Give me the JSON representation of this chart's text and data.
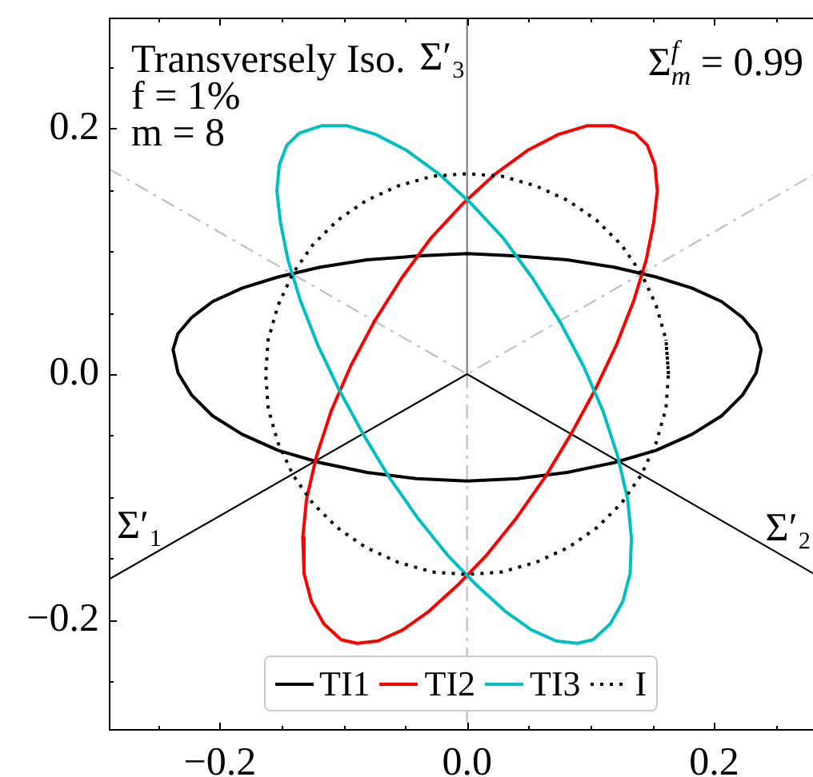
{
  "chart_data": {
    "type": "line",
    "annotations": [
      "Transversely Iso.",
      "f = 1%",
      "m = 8",
      "Σ$^{f}$$_{m}$ = 0.99",
      {
        "text": "Σ′₃",
        "x": 0,
        "y": 0.24
      },
      {
        "text": "Σ′₁",
        "x": -0.245,
        "y": -0.141
      },
      {
        "text": "Σ′₂",
        "x": 0.248,
        "y": -0.143
      }
    ],
    "xlim": [
      -0.29,
      0.28
    ],
    "ylim": [
      -0.29,
      0.29
    ],
    "xticks": [
      {
        "value": -0.25,
        "label": null
      },
      {
        "value": -0.2,
        "label": "−0.2"
      },
      {
        "value": -0.15,
        "label": null
      },
      {
        "value": -0.1,
        "label": null
      },
      {
        "value": -0.05,
        "label": null
      },
      {
        "value": 0,
        "label": "0.0"
      },
      {
        "value": 0.05,
        "label": null
      },
      {
        "value": 0.1,
        "label": null
      },
      {
        "value": 0.15,
        "label": null
      },
      0.2,
      {
        "value": 0.25,
        "label": null
      }
    ],
    "yticks": [
      {
        "value": -0.25,
        "label": null
      },
      {
        "value": -0.2,
        "label": "−0.2"
      },
      {
        "value": -0.15,
        "label": null
      },
      {
        "value": -0.1,
        "label": null
      },
      {
        "value": -0.05,
        "label": null
      },
      {
        "value": 0,
        "label": "0.0"
      },
      {
        "value": 0.05,
        "label": null
      },
      {
        "value": 0.1,
        "label": null
      },
      {
        "value": 0.15,
        "label": null
      },
      0.2,
      {
        "value": 0.25,
        "label": null
      }
    ],
    "legend": "bottom",
    "series": [
      {
        "color": "#808080",
        "line_style": "solid",
        "x": [
          0,
          0
        ],
        "values": [
          0,
          0.29
        ]
      },
      {
        "color": "#c0c0c0",
        "line_style": "dashed",
        "x": [
          0,
          0
        ],
        "values": [
          0,
          -0.29
        ]
      },
      {
        "color": "#c0c0c0",
        "line_style": "dashed",
        "x": [
          -0.29,
          0,
          0.28
        ],
        "values": [
          0.167,
          0,
          0.162
        ]
      },
      {
        "color": "#000000",
        "line_style": "solid",
        "x": [
          -0.29,
          0,
          0.28
        ],
        "values": [
          -0.167,
          0,
          -0.162
        ]
      },
      {
        "name": "TI1",
        "color": "#000000",
        "line_style": "solid",
        "x": [
          0.238,
          0.234,
          0.223,
          0.206,
          0.182,
          0.153,
          0.119,
          0.081,
          0.041,
          0,
          -0.041,
          -0.081,
          -0.119,
          -0.153,
          -0.182,
          -0.206,
          -0.223,
          -0.234,
          -0.238,
          -0.234,
          -0.223,
          -0.206,
          -0.182,
          -0.153,
          -0.119,
          -0.081,
          -0.041,
          0,
          0.041,
          0.081,
          0.119,
          0.153,
          0.182,
          0.206,
          0.223,
          0.234,
          0.238,
          0.234
        ],
        "values": [
          0.02,
          0.033,
          0.046,
          0.059,
          0.07,
          0.079,
          0.087,
          0.093,
          0.096,
          0.098,
          0.096,
          0.093,
          0.087,
          0.079,
          0.07,
          0.059,
          0.046,
          0.033,
          0.02,
          0.001,
          -0.017,
          -0.034,
          -0.049,
          -0.062,
          -0.072,
          -0.08,
          -0.085,
          -0.087,
          -0.085,
          -0.08,
          -0.072,
          -0.062,
          -0.049,
          -0.034,
          -0.017,
          0.001,
          0.02,
          0.033
        ]
      },
      {
        "name": "TI2",
        "color": "#ff0000",
        "line_style": "solid",
        "x": [
          -0.102,
          -0.089,
          -0.072,
          -0.052,
          -0.031,
          -0.008,
          0.016,
          0.04,
          0.063,
          0.084,
          0.104,
          0.121,
          0.135,
          0.145,
          0.151,
          0.154,
          0.152,
          0.146,
          0.136,
          0.118,
          0.097,
          0.074,
          0.049,
          0.023,
          -0.003,
          -0.029,
          -0.053,
          -0.075,
          -0.094,
          -0.11,
          -0.122,
          -0.13,
          -0.133,
          -0.132,
          -0.126,
          -0.116,
          -0.102,
          -0.089
        ],
        "values": [
          -0.216,
          -0.219,
          -0.217,
          -0.208,
          -0.193,
          -0.172,
          -0.147,
          -0.117,
          -0.084,
          -0.049,
          -0.012,
          0.024,
          0.06,
          0.093,
          0.123,
          0.149,
          0.17,
          0.186,
          0.196,
          0.202,
          0.202,
          0.195,
          0.182,
          0.163,
          0.139,
          0.111,
          0.078,
          0.043,
          0.007,
          -0.03,
          -0.067,
          -0.102,
          -0.133,
          -0.162,
          -0.185,
          -0.203,
          -0.216,
          -0.219
        ]
      },
      {
        "name": "TI3",
        "color": "#00bfbf",
        "line_style": "solid",
        "x": [
          0.102,
          0.089,
          0.072,
          0.052,
          0.031,
          0.008,
          -0.016,
          -0.04,
          -0.063,
          -0.084,
          -0.104,
          -0.121,
          -0.135,
          -0.145,
          -0.151,
          -0.154,
          -0.152,
          -0.146,
          -0.136,
          -0.118,
          -0.097,
          -0.074,
          -0.049,
          -0.023,
          0.003,
          0.029,
          0.053,
          0.075,
          0.094,
          0.11,
          0.122,
          0.13,
          0.133,
          0.132,
          0.126,
          0.116,
          0.102,
          0.089
        ],
        "values": [
          -0.216,
          -0.219,
          -0.217,
          -0.208,
          -0.193,
          -0.172,
          -0.147,
          -0.117,
          -0.084,
          -0.049,
          -0.012,
          0.024,
          0.06,
          0.093,
          0.123,
          0.149,
          0.17,
          0.186,
          0.196,
          0.202,
          0.202,
          0.195,
          0.182,
          0.163,
          0.139,
          0.111,
          0.078,
          0.043,
          0.007,
          -0.03,
          -0.067,
          -0.102,
          -0.133,
          -0.162,
          -0.185,
          -0.203,
          -0.216,
          -0.219
        ]
      },
      {
        "name": "I",
        "color": "#000000",
        "line_style": "dotted",
        "x": [
          0.163,
          0.161,
          0.153,
          0.141,
          0.125,
          0.105,
          0.082,
          0.056,
          0.028,
          0,
          -0.028,
          -0.056,
          -0.082,
          -0.105,
          -0.125,
          -0.141,
          -0.153,
          -0.161,
          -0.163,
          -0.161,
          -0.153,
          -0.141,
          -0.125,
          -0.105,
          -0.082,
          -0.056,
          -0.028,
          0,
          0.028,
          0.056,
          0.082,
          0.105,
          0.125,
          0.141,
          0.153,
          0.161,
          0.163,
          0.161
        ],
        "values": [
          0,
          0.028,
          0.056,
          0.082,
          0.105,
          0.125,
          0.141,
          0.153,
          0.161,
          0.163,
          0.161,
          0.153,
          0.141,
          0.125,
          0.105,
          0.082,
          0.056,
          0.028,
          0,
          -0.028,
          -0.056,
          -0.082,
          -0.105,
          -0.125,
          -0.141,
          -0.153,
          -0.161,
          -0.163,
          -0.161,
          -0.153,
          -0.141,
          -0.125,
          -0.105,
          -0.082,
          -0.056,
          -0.028,
          0,
          0.028
        ]
      }
    ]
  }
}
